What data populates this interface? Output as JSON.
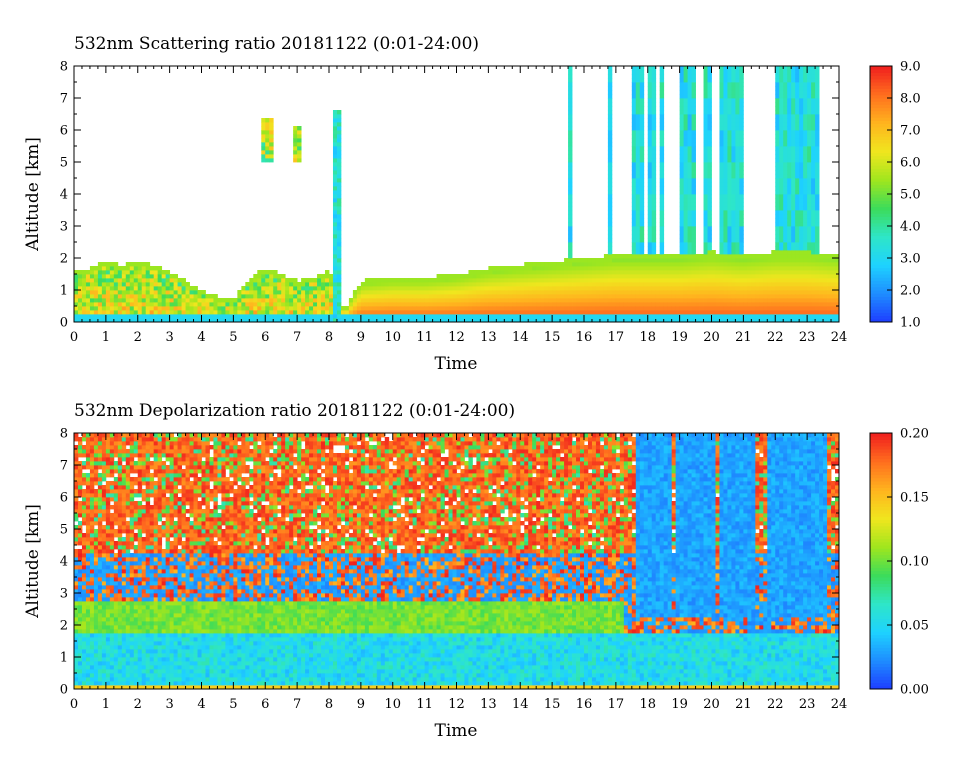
{
  "chart_data": [
    {
      "type": "heatmap",
      "title": "532nm Scattering ratio  20181122 (0:01-24:00)",
      "xlabel": "Time",
      "ylabel": "Altitude [km]",
      "x_ticks": [
        "0",
        "1",
        "2",
        "3",
        "4",
        "5",
        "6",
        "7",
        "8",
        "9",
        "10",
        "11",
        "12",
        "13",
        "14",
        "15",
        "16",
        "17",
        "18",
        "19",
        "20",
        "21",
        "22",
        "23",
        "24"
      ],
      "y_ticks": [
        "0",
        "1",
        "2",
        "3",
        "4",
        "5",
        "6",
        "7",
        "8"
      ],
      "xlim": [
        0,
        24
      ],
      "ylim": [
        0,
        8
      ],
      "colorbar": {
        "range": [
          1.0,
          9.0
        ],
        "ticks": [
          "1.0",
          "2.0",
          "3.0",
          "4.0",
          "5.0",
          "6.0",
          "7.0",
          "8.0",
          "9.0"
        ]
      },
      "cloud_top_km": [
        [
          0,
          1.6
        ],
        [
          0.5,
          1.7
        ],
        [
          1,
          1.9
        ],
        [
          1.5,
          1.8
        ],
        [
          2,
          1.9
        ],
        [
          2.5,
          1.8
        ],
        [
          3,
          1.6
        ],
        [
          3.5,
          1.3
        ],
        [
          4,
          1.0
        ],
        [
          4.5,
          0.8
        ],
        [
          5,
          0.7
        ],
        [
          5.5,
          1.4
        ],
        [
          6,
          1.7
        ],
        [
          6.5,
          1.5
        ],
        [
          7,
          1.3
        ],
        [
          7.5,
          1.4
        ],
        [
          8,
          1.6
        ],
        [
          8.5,
          0.4
        ],
        [
          9,
          1.3
        ],
        [
          10,
          1.4
        ],
        [
          11,
          1.4
        ],
        [
          12,
          1.5
        ],
        [
          13,
          1.7
        ],
        [
          14,
          1.8
        ],
        [
          15,
          1.9
        ],
        [
          16,
          2.0
        ],
        [
          17,
          2.1
        ],
        [
          18,
          2.1
        ],
        [
          19,
          2.1
        ],
        [
          20,
          2.2
        ],
        [
          21,
          2.1
        ],
        [
          22,
          2.2
        ],
        [
          23,
          2.2
        ],
        [
          24,
          2.1
        ]
      ],
      "high_cloud_columns_h": [
        [
          15.55,
          15.65
        ],
        [
          16.75,
          16.85
        ],
        [
          17.55,
          17.85
        ],
        [
          17.95,
          18.3
        ],
        [
          18.4,
          18.55
        ],
        [
          18.95,
          19.55
        ],
        [
          19.7,
          20.05
        ],
        [
          20.25,
          20.6
        ],
        [
          20.65,
          21.0
        ],
        [
          21.95,
          22.2
        ],
        [
          22.3,
          23.35
        ]
      ]
    },
    {
      "type": "heatmap",
      "title": "532nm Depolarization ratio  20181122 (0:01-24:00)",
      "xlabel": "Time",
      "ylabel": "Altitude [km]",
      "x_ticks": [
        "0",
        "1",
        "2",
        "3",
        "4",
        "5",
        "6",
        "7",
        "8",
        "9",
        "10",
        "11",
        "12",
        "13",
        "14",
        "15",
        "16",
        "17",
        "18",
        "19",
        "20",
        "21",
        "22",
        "23",
        "24"
      ],
      "y_ticks": [
        "0",
        "1",
        "2",
        "3",
        "4",
        "5",
        "6",
        "7",
        "8"
      ],
      "xlim": [
        0,
        24
      ],
      "ylim": [
        0,
        8
      ],
      "colorbar": {
        "range": [
          0.0,
          0.2
        ],
        "ticks": [
          "0.00",
          "0.05",
          "0.10",
          "0.15",
          "0.20"
        ]
      },
      "green_layer_km": [
        1.8,
        2.7
      ],
      "low_cloud_columns_h": [
        [
          17.6,
          18.7
        ],
        [
          18.9,
          20.1
        ],
        [
          20.3,
          21.4
        ],
        [
          21.8,
          23.6
        ]
      ]
    }
  ],
  "colors": {
    "scale": [
      "#1e3cff",
      "#1e8cff",
      "#1ed2ff",
      "#2ee6c8",
      "#3cdc5a",
      "#a0e61e",
      "#f0e61e",
      "#ffb41e",
      "#ff6e1e",
      "#f01e1e"
    ]
  }
}
